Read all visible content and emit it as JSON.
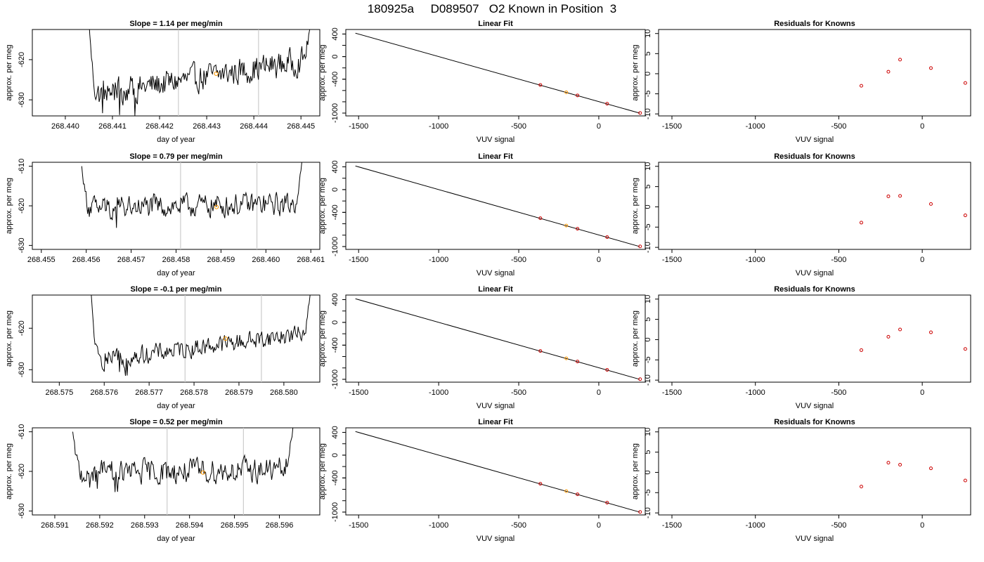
{
  "suptitle": "180925a     D089507   O2 Known in Position  3",
  "chart_data": [
    {
      "type": "line",
      "title": "Slope =  1.14  per meg/min",
      "xlabel": "day of year",
      "ylabel": "approx. per meg",
      "xlim": [
        268.4393,
        268.4454
      ],
      "ylim": [
        -634,
        -612.5
      ],
      "xticks": [
        "268.440",
        "268.441",
        "268.442",
        "268.443",
        "268.444",
        "268.445"
      ],
      "yticks": [
        "-620",
        "-630"
      ],
      "vlines": [
        268.4424,
        268.4441
      ],
      "marker": {
        "x": 268.4432,
        "y": -623.5,
        "color": "#ff9900"
      },
      "series": {
        "x_start": 268.4405,
        "x_end": 268.4452,
        "start_level": -610,
        "end_level": -611,
        "trend": [
          -629,
          -620
        ],
        "noise": 3.0,
        "dip_min": -635
      }
    },
    {
      "type": "line",
      "title": "Slope =  0.79  per meg/min",
      "xlabel": "day of year",
      "ylabel": "approx. per meg",
      "xlim": [
        268.4548,
        268.4612
      ],
      "ylim": [
        -631,
        -609
      ],
      "xticks": [
        "268.455",
        "268.456",
        "268.457",
        "268.458",
        "268.459",
        "268.460",
        "268.461"
      ],
      "yticks": [
        "-610",
        "-620",
        "-630"
      ],
      "vlines": [
        268.4581,
        268.4598
      ],
      "marker": {
        "x": 268.4589,
        "y": -620.3,
        "color": "#ff9900"
      },
      "series": {
        "x_start": 268.4559,
        "x_end": 268.4608,
        "start_level": -610,
        "end_level": -609,
        "trend": [
          -620.5,
          -619.5
        ],
        "noise": 2.6,
        "dip_min": -627
      }
    },
    {
      "type": "line",
      "title": "Slope =  -0.1  per meg/min",
      "xlabel": "day of year",
      "ylabel": "approx. per meg",
      "xlim": [
        268.5744,
        268.5808
      ],
      "ylim": [
        -633,
        -612
      ],
      "xticks": [
        "268.575",
        "268.576",
        "268.577",
        "268.578",
        "268.579",
        "268.580"
      ],
      "yticks": [
        "-620",
        "-630"
      ],
      "vlines": [
        268.5778,
        268.5795
      ],
      "marker": {
        "x": 268.5787,
        "y": -622.5,
        "color": "#ff9900"
      },
      "series": {
        "x_start": 268.5757,
        "x_end": 268.5806,
        "start_level": -610,
        "end_level": -610,
        "trend": [
          -628,
          -621
        ],
        "noise": 2.0,
        "dip_min": -632
      }
    },
    {
      "type": "line",
      "title": "Slope =  0.52  per meg/min",
      "xlabel": "day of year",
      "ylabel": "approx. per meg",
      "xlim": [
        268.5905,
        268.5969
      ],
      "ylim": [
        -631,
        -609
      ],
      "xticks": [
        "268.591",
        "268.592",
        "268.593",
        "268.594",
        "268.595",
        "268.596"
      ],
      "yticks": [
        "-610",
        "-620",
        "-630"
      ],
      "vlines": [
        268.5935,
        268.5952
      ],
      "marker": {
        "x": 268.5943,
        "y": -620.3,
        "color": "#ff9900"
      },
      "series": {
        "x_start": 268.5914,
        "x_end": 268.5963,
        "start_level": -610,
        "end_level": -609,
        "trend": [
          -620.5,
          -619.5
        ],
        "noise": 2.8,
        "dip_min": -626
      }
    },
    {
      "type": "scatter",
      "title": "Linear Fit",
      "xlabel": "VUV signal",
      "ylabel": "approx. per meg",
      "xlim": [
        -1580,
        290
      ],
      "ylim": [
        -1050,
        480
      ],
      "xticks": [
        -1500,
        -1000,
        -500,
        0
      ],
      "yticks": [
        400,
        0,
        -400,
        -1000
      ],
      "ytick_labels": [
        "400",
        "0",
        "-400",
        "-1000"
      ],
      "fit_line": {
        "x": [
          -1520,
          255
        ],
        "y": [
          415,
          -1000
        ]
      },
      "points": [
        {
          "x": -365,
          "y": -502
        },
        {
          "x": -203,
          "y": -632
        },
        {
          "x": -133,
          "y": -687
        },
        {
          "x": 52,
          "y": -834
        },
        {
          "x": 258,
          "y": -998
        }
      ],
      "highlight_index": 1
    },
    {
      "type": "scatter",
      "title": "Residuals for Knowns",
      "xlabel": "VUV signal",
      "ylabel": "approx. per meg",
      "xlim": [
        -1580,
        290
      ],
      "ylim": [
        -10.5,
        11
      ],
      "xticks": [
        -1500,
        -1000,
        -500,
        0
      ],
      "yticks": [
        10,
        5,
        0,
        -5,
        -10
      ],
      "points": [
        {
          "x": -365,
          "y": -3.0
        },
        {
          "x": -203,
          "y": 0.5
        },
        {
          "x": -133,
          "y": 3.5
        },
        {
          "x": 52,
          "y": 1.4
        },
        {
          "x": 258,
          "y": -2.3
        }
      ]
    },
    {
      "type": "scatter",
      "title": "Residuals for Knowns",
      "xlabel": "VUV signal",
      "ylabel": "approx. per meg",
      "xlim": [
        -1580,
        290
      ],
      "ylim": [
        -10.5,
        11
      ],
      "xticks": [
        -1500,
        -1000,
        -500,
        0
      ],
      "yticks": [
        10,
        5,
        0,
        -5,
        -10
      ],
      "points": [
        {
          "x": -365,
          "y": -3.9
        },
        {
          "x": -203,
          "y": 2.6
        },
        {
          "x": -133,
          "y": 2.7
        },
        {
          "x": 52,
          "y": 0.7
        },
        {
          "x": 258,
          "y": -2.1
        }
      ]
    },
    {
      "type": "scatter",
      "title": "Residuals for Knowns",
      "xlabel": "VUV signal",
      "ylabel": "approx. per meg",
      "xlim": [
        -1580,
        290
      ],
      "ylim": [
        -10.5,
        11
      ],
      "xticks": [
        -1500,
        -1000,
        -500,
        0
      ],
      "yticks": [
        10,
        5,
        0,
        -5,
        -10
      ],
      "points": [
        {
          "x": -365,
          "y": -2.6
        },
        {
          "x": -203,
          "y": 0.7
        },
        {
          "x": -133,
          "y": 2.5
        },
        {
          "x": 52,
          "y": 1.8
        },
        {
          "x": 258,
          "y": -2.3
        }
      ]
    },
    {
      "type": "scatter",
      "title": "Residuals for Knowns",
      "xlabel": "VUV signal",
      "ylabel": "approx. per meg",
      "xlim": [
        -1580,
        290
      ],
      "ylim": [
        -10.5,
        11
      ],
      "xticks": [
        -1500,
        -1000,
        -500,
        0
      ],
      "yticks": [
        10,
        5,
        0,
        -5,
        -10
      ],
      "points": [
        {
          "x": -365,
          "y": -3.5
        },
        {
          "x": -203,
          "y": 2.4
        },
        {
          "x": -133,
          "y": 1.9
        },
        {
          "x": 52,
          "y": 1.0
        },
        {
          "x": 258,
          "y": -2.0
        }
      ]
    }
  ],
  "colors": {
    "axis": "#000000",
    "line": "#000000",
    "vline": "#cccccc",
    "highlight": "#ff9900",
    "points": "#cc0000"
  }
}
